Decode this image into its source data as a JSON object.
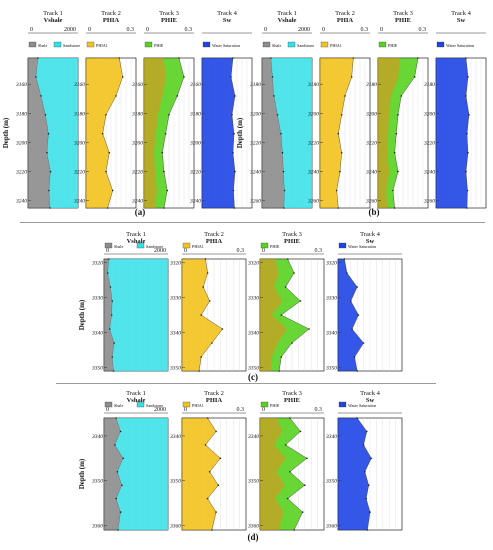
{
  "figure": {
    "depth_axis_label": "Depth (m)",
    "panels": [
      {
        "label": "(a)",
        "depth_range": [
          3142,
          3245
        ],
        "depth_ticks": [
          3160,
          3180,
          3200,
          3220,
          3240
        ]
      },
      {
        "label": "(b)",
        "depth_range": [
          3162,
          3265
        ],
        "depth_ticks": [
          3180,
          3200,
          3220,
          3240,
          3260
        ]
      },
      {
        "label": "(c)",
        "depth_range": [
          3319,
          3351
        ],
        "depth_ticks": [
          3320,
          3330,
          3340,
          3350
        ]
      },
      {
        "label": "(d)",
        "depth_range": [
          3336,
          3361
        ],
        "depth_ticks": [
          3340,
          3350,
          3360
        ]
      }
    ]
  },
  "tracks": [
    {
      "track_title": "Track 1",
      "log_name": "Vshale",
      "scale_min": "0",
      "scale_max": "2000",
      "legend": [
        {
          "label": "Shale",
          "color": "#8c8c8c"
        },
        {
          "label": "Sandstone",
          "color": "#33e0e8"
        }
      ]
    },
    {
      "track_title": "Track 2",
      "log_name": "PHIA",
      "scale_min": "0",
      "scale_max": "0.3",
      "legend": [
        {
          "label": "PHIA1",
          "color": "#f3c21c"
        }
      ]
    },
    {
      "track_title": "Track 3",
      "log_name": "PHIE",
      "scale_min": "0",
      "scale_max": "0.3",
      "legend": [
        {
          "label": "PHIE",
          "color": "#58d21e"
        }
      ]
    },
    {
      "track_title": "Track 4",
      "log_name": "Sw",
      "scale_min": "",
      "scale_max": "",
      "legend": [
        {
          "label": "Water Saturation",
          "color": "#1f45e6"
        }
      ]
    }
  ],
  "colors": {
    "shale": "#8c8c8c",
    "sandstone": "#33e0e8",
    "phia": "#f3c21c",
    "phie": "#58d21e",
    "phie_hot": "#f08a1c",
    "sw": "#1f45e6",
    "grid": "#cfcfcf"
  },
  "chart_data": [
    {
      "type": "area",
      "panel": "(a)",
      "title": "",
      "xlabel": "",
      "ylabel": "Depth (m)",
      "depth": [
        3142,
        3155,
        3168,
        3181,
        3194,
        3207,
        3220,
        3233,
        3245
      ],
      "ylim": [
        3245,
        3142
      ],
      "series": [
        {
          "name": "Vshale",
          "xlim": [
            0,
            2000
          ],
          "values": [
            400,
            320,
            520,
            700,
            820,
            760,
            900,
            840,
            880
          ]
        },
        {
          "name": "PHIA",
          "xlim": [
            0,
            0.3
          ],
          "values": [
            0.2,
            0.22,
            0.18,
            0.12,
            0.1,
            0.14,
            0.12,
            0.16,
            0.13
          ]
        },
        {
          "name": "PHIE",
          "xlim": [
            0,
            0.3
          ],
          "values": [
            0.21,
            0.24,
            0.2,
            0.15,
            0.13,
            0.11,
            0.12,
            0.14,
            0.12
          ]
        },
        {
          "name": "Sw",
          "xlim": [
            0,
            1
          ],
          "values": [
            0.62,
            0.58,
            0.66,
            0.6,
            0.64,
            0.62,
            0.66,
            0.63,
            0.65
          ]
        }
      ]
    },
    {
      "type": "area",
      "panel": "(b)",
      "title": "",
      "xlabel": "",
      "ylabel": "Depth (m)",
      "depth": [
        3162,
        3175,
        3188,
        3201,
        3214,
        3227,
        3240,
        3253,
        3265
      ],
      "ylim": [
        3265,
        3162
      ],
      "series": [
        {
          "name": "Vshale",
          "xlim": [
            0,
            2000
          ],
          "values": [
            360,
            420,
            480,
            620,
            760,
            820,
            860,
            900,
            880
          ]
        },
        {
          "name": "PHIA",
          "xlim": [
            0,
            0.3
          ],
          "values": [
            0.2,
            0.19,
            0.15,
            0.13,
            0.11,
            0.13,
            0.12,
            0.1,
            0.11
          ]
        },
        {
          "name": "PHIE",
          "xlim": [
            0,
            0.3
          ],
          "values": [
            0.24,
            0.22,
            0.14,
            0.12,
            0.11,
            0.1,
            0.12,
            0.09,
            0.1
          ]
        },
        {
          "name": "Sw",
          "xlim": [
            0,
            1
          ],
          "values": [
            0.6,
            0.64,
            0.6,
            0.66,
            0.62,
            0.64,
            0.6,
            0.63,
            0.62
          ]
        }
      ]
    },
    {
      "type": "area",
      "panel": "(c)",
      "title": "",
      "xlabel": "",
      "ylabel": "Depth (m)",
      "depth": [
        3319,
        3323,
        3327,
        3331,
        3335,
        3339,
        3343,
        3347,
        3351
      ],
      "ylim": [
        3351,
        3319
      ],
      "series": [
        {
          "name": "Vshale",
          "xlim": [
            0,
            2000
          ],
          "values": [
            150,
            120,
            200,
            260,
            240,
            180,
            320,
            260,
            300
          ]
        },
        {
          "name": "PHIA",
          "xlim": [
            0,
            0.3
          ],
          "values": [
            0.11,
            0.12,
            0.1,
            0.13,
            0.09,
            0.19,
            0.14,
            0.09,
            0.08
          ]
        },
        {
          "name": "PHIE",
          "xlim": [
            0,
            0.3
          ],
          "values": [
            0.13,
            0.16,
            0.12,
            0.19,
            0.1,
            0.23,
            0.15,
            0.1,
            0.09
          ]
        },
        {
          "name": "Sw",
          "xlim": [
            0,
            1
          ],
          "values": [
            0.1,
            0.14,
            0.3,
            0.2,
            0.32,
            0.22,
            0.4,
            0.26,
            0.3
          ]
        }
      ]
    },
    {
      "type": "area",
      "panel": "(d)",
      "title": "",
      "xlabel": "",
      "ylabel": "Depth (m)",
      "depth": [
        3336,
        3339,
        3342,
        3345,
        3348,
        3351,
        3354,
        3357,
        3361
      ],
      "ylim": [
        3361,
        3336
      ],
      "series": [
        {
          "name": "Vshale",
          "xlim": [
            0,
            2000
          ],
          "values": [
            380,
            520,
            340,
            600,
            420,
            560,
            380,
            520,
            440
          ]
        },
        {
          "name": "PHIA",
          "xlim": [
            0,
            0.3
          ],
          "values": [
            0.12,
            0.16,
            0.11,
            0.18,
            0.13,
            0.17,
            0.12,
            0.16,
            0.14
          ]
        },
        {
          "name": "PHIE",
          "xlim": [
            0,
            0.3
          ],
          "values": [
            0.14,
            0.19,
            0.12,
            0.22,
            0.14,
            0.21,
            0.13,
            0.2,
            0.16
          ]
        },
        {
          "name": "Sw",
          "xlim": [
            0,
            1
          ],
          "values": [
            0.3,
            0.45,
            0.4,
            0.52,
            0.42,
            0.48,
            0.44,
            0.5,
            0.46
          ]
        }
      ]
    }
  ]
}
